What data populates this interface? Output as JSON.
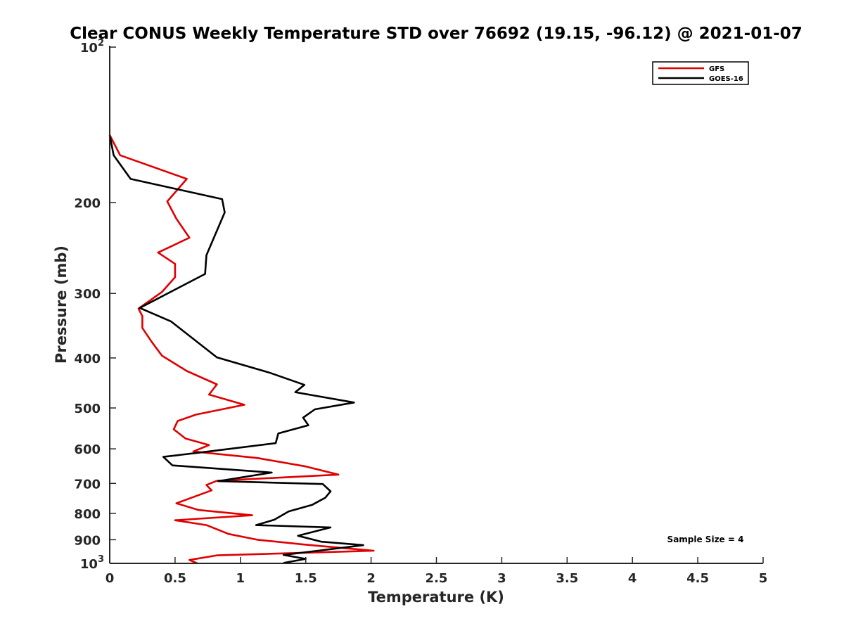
{
  "chart_data": {
    "type": "line",
    "title": "Clear CONUS Weekly Temperature STD over 76692 (19.15, -96.12) @ 2021-01-07",
    "xlabel": "Temperature (K)",
    "ylabel": "Pressure (mb)",
    "xlim": [
      0,
      5
    ],
    "ylim": [
      100,
      1000
    ],
    "yscale": "log",
    "y_reversed": true,
    "x_ticks": [
      0,
      0.5,
      1,
      1.5,
      2,
      2.5,
      3,
      3.5,
      4,
      4.5,
      5
    ],
    "x_tick_labels": [
      "0",
      "0.5",
      "1",
      "1.5",
      "2",
      "2.5",
      "3",
      "3.5",
      "4",
      "4.5",
      "5"
    ],
    "y_ticks": [
      100,
      200,
      300,
      400,
      500,
      600,
      700,
      800,
      900,
      1000
    ],
    "y_tick_labels": [
      {
        "base": "10",
        "exp": "2"
      },
      {
        "base": "200",
        "exp": ""
      },
      {
        "base": "300",
        "exp": ""
      },
      {
        "base": "400",
        "exp": ""
      },
      {
        "base": "500",
        "exp": ""
      },
      {
        "base": "600",
        "exp": ""
      },
      {
        "base": "700",
        "exp": ""
      },
      {
        "base": "800",
        "exp": ""
      },
      {
        "base": "900",
        "exp": ""
      },
      {
        "base": "10",
        "exp": "3"
      }
    ],
    "legend_position": "top-right",
    "grid": false,
    "series": [
      {
        "name": "GFS",
        "color": "#e00000",
        "points": [
          [
            0.0,
            148
          ],
          [
            0.08,
            162
          ],
          [
            0.59,
            180
          ],
          [
            0.44,
            199
          ],
          [
            0.51,
            215
          ],
          [
            0.61,
            234
          ],
          [
            0.37,
            250
          ],
          [
            0.5,
            263
          ],
          [
            0.5,
            279
          ],
          [
            0.4,
            298
          ],
          [
            0.22,
            321
          ],
          [
            0.25,
            332
          ],
          [
            0.25,
            350
          ],
          [
            0.32,
            372
          ],
          [
            0.4,
            396
          ],
          [
            0.59,
            424
          ],
          [
            0.82,
            450
          ],
          [
            0.76,
            471
          ],
          [
            1.03,
            493
          ],
          [
            0.66,
            515
          ],
          [
            0.52,
            530
          ],
          [
            0.49,
            550
          ],
          [
            0.58,
            573
          ],
          [
            0.76,
            590
          ],
          [
            0.64,
            607
          ],
          [
            1.13,
            625
          ],
          [
            1.5,
            649
          ],
          [
            1.75,
            673
          ],
          [
            0.82,
            692
          ],
          [
            0.74,
            705
          ],
          [
            0.78,
            722
          ],
          [
            0.51,
            765
          ],
          [
            0.68,
            788
          ],
          [
            1.09,
            807
          ],
          [
            0.5,
            825
          ],
          [
            0.74,
            843
          ],
          [
            0.91,
            877
          ],
          [
            1.13,
            900
          ],
          [
            1.5,
            920
          ],
          [
            2.02,
            945
          ],
          [
            0.82,
            965
          ],
          [
            0.61,
            985
          ],
          [
            0.67,
            1000
          ]
        ]
      },
      {
        "name": "GOES-16",
        "color": "#000000",
        "points": [
          [
            0.0,
            148
          ],
          [
            0.03,
            162
          ],
          [
            0.16,
            180
          ],
          [
            0.86,
            197
          ],
          [
            0.88,
            209
          ],
          [
            0.74,
            253
          ],
          [
            0.73,
            275
          ],
          [
            0.23,
            320
          ],
          [
            0.47,
            340
          ],
          [
            0.82,
            399
          ],
          [
            1.22,
            427
          ],
          [
            1.49,
            451
          ],
          [
            1.42,
            466
          ],
          [
            1.87,
            488
          ],
          [
            1.57,
            503
          ],
          [
            1.48,
            522
          ],
          [
            1.52,
            540
          ],
          [
            1.29,
            560
          ],
          [
            1.27,
            585
          ],
          [
            0.69,
            610
          ],
          [
            0.41,
            622
          ],
          [
            0.48,
            646
          ],
          [
            1.24,
            667
          ],
          [
            0.83,
            693
          ],
          [
            1.63,
            702
          ],
          [
            1.69,
            725
          ],
          [
            1.65,
            746
          ],
          [
            1.55,
            770
          ],
          [
            1.37,
            793
          ],
          [
            1.26,
            823
          ],
          [
            1.12,
            843
          ],
          [
            1.69,
            852
          ],
          [
            1.44,
            884
          ],
          [
            1.62,
            908
          ],
          [
            1.94,
            922
          ],
          [
            1.33,
            963
          ],
          [
            1.5,
            980
          ],
          [
            1.33,
            998
          ]
        ]
      }
    ],
    "annotation": "Sample Size = 4"
  }
}
